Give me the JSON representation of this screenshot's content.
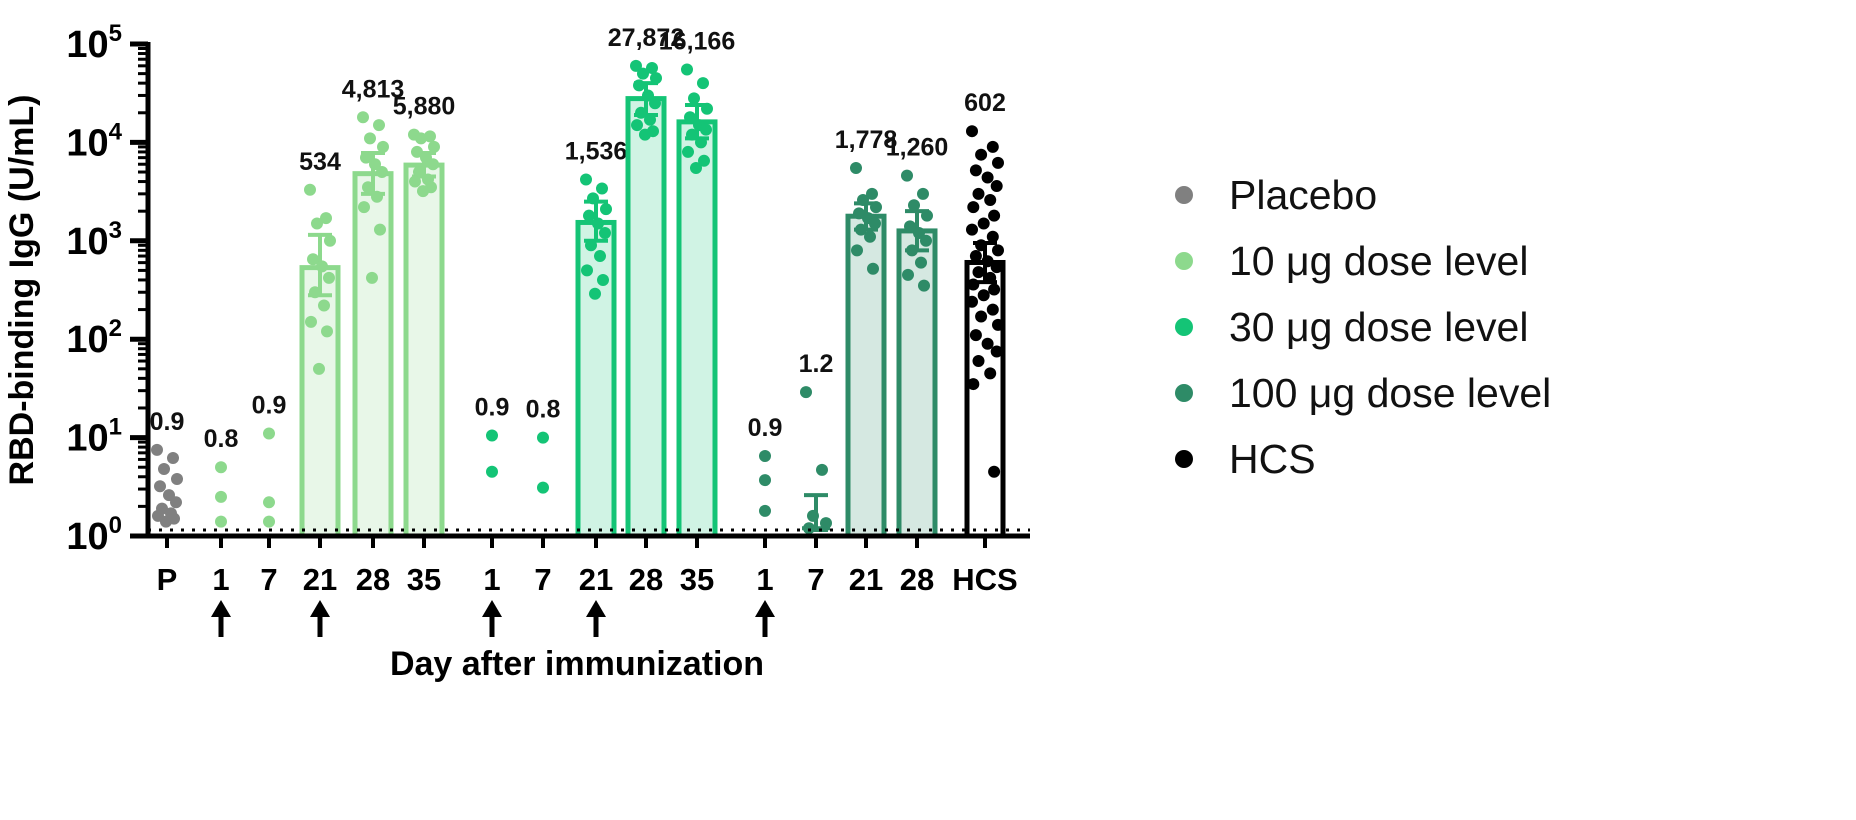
{
  "chart_data": {
    "type": "bar",
    "title": "",
    "xlabel": "Day after immunization",
    "ylabel": "RBD-binding IgG (U/mL)",
    "yscale": "log",
    "ylim": [
      1,
      100000
    ],
    "y_ticks": [
      {
        "value": 1,
        "base": "10",
        "exp": "0"
      },
      {
        "value": 10,
        "base": "10",
        "exp": "1"
      },
      {
        "value": 100,
        "base": "10",
        "exp": "2"
      },
      {
        "value": 1000,
        "base": "10",
        "exp": "3"
      },
      {
        "value": 10000,
        "base": "10",
        "exp": "4"
      },
      {
        "value": 100000,
        "base": "10",
        "exp": "5"
      }
    ],
    "dotted_line_value": 1.15,
    "categories": [
      "P",
      "1",
      "7",
      "21",
      "28",
      "35",
      "1",
      "7",
      "21",
      "28",
      "35",
      "1",
      "7",
      "21",
      "28",
      "HCS"
    ],
    "immunization_arrow_indices": [
      1,
      3,
      6,
      8,
      11
    ],
    "series": [
      {
        "name": "Placebo",
        "color": "#808080"
      },
      {
        "name": "10 μg dose level",
        "color": "#8dd98d"
      },
      {
        "name": "30 μg dose level",
        "color": "#14c476"
      },
      {
        "name": "100 μg dose level",
        "color": "#2e8b67"
      },
      {
        "name": "HCS",
        "color": "#000000"
      }
    ],
    "groups": [
      {
        "category": "P",
        "series": "Placebo",
        "gmt": 0.9,
        "label": "0.9",
        "bar": false,
        "error": null,
        "points": [
          7.5,
          6.2,
          4.8,
          3.8,
          3.2,
          2.6,
          2.2,
          1.9,
          1.7,
          1.6,
          1.5,
          1.4
        ]
      },
      {
        "category": "1",
        "series": "10 μg dose level",
        "gmt": 0.8,
        "label": "0.8",
        "bar": false,
        "error": null,
        "points": [
          5.0,
          2.5,
          1.4
        ]
      },
      {
        "category": "7",
        "series": "10 μg dose level",
        "gmt": 0.9,
        "label": "0.9",
        "bar": false,
        "error": null,
        "points": [
          11,
          2.2,
          1.4
        ]
      },
      {
        "category": "21",
        "series": "10 μg dose level",
        "gmt": 534,
        "label": "534",
        "bar": true,
        "error": [
          280,
          1150
        ],
        "points": [
          3300,
          1700,
          1500,
          1000,
          650,
          550,
          420,
          300,
          220,
          150,
          120,
          50
        ]
      },
      {
        "category": "28",
        "series": "10 μg dose level",
        "gmt": 4813,
        "label": "4,813",
        "bar": true,
        "error": [
          3000,
          7800
        ],
        "points": [
          18000,
          15000,
          11000,
          9000,
          7000,
          6000,
          5000,
          3500,
          2800,
          2200,
          1300,
          420
        ]
      },
      {
        "category": "35",
        "series": "10 μg dose level",
        "gmt": 5880,
        "label": "5,880",
        "bar": true,
        "error": [
          4500,
          7800
        ],
        "points": [
          12000,
          11500,
          11000,
          9000,
          8000,
          7000,
          6000,
          5000,
          4200,
          4000,
          3500,
          3200
        ]
      },
      {
        "category": "1",
        "series": "30 μg dose level",
        "gmt": 0.9,
        "label": "0.9",
        "bar": false,
        "error": null,
        "points": [
          10.5,
          4.5
        ]
      },
      {
        "category": "7",
        "series": "30 μg dose level",
        "gmt": 0.8,
        "label": "0.8",
        "bar": false,
        "error": null,
        "points": [
          10,
          3.1
        ]
      },
      {
        "category": "21",
        "series": "30 μg dose level",
        "gmt": 1536,
        "label": "1,536",
        "bar": true,
        "error": [
          1000,
          2500
        ],
        "points": [
          4200,
          3400,
          2700,
          2100,
          1800,
          1500,
          1200,
          900,
          700,
          500,
          400,
          290
        ]
      },
      {
        "category": "28",
        "series": "30 μg dose level",
        "gmt": 27872,
        "label": "27,872",
        "bar": true,
        "error": [
          19000,
          40000
        ],
        "points": [
          60000,
          57000,
          50000,
          45000,
          38000,
          30000,
          25000,
          20000,
          17000,
          15000,
          13000,
          12000
        ]
      },
      {
        "category": "35",
        "series": "30 μg dose level",
        "gmt": 16166,
        "label": "16,166",
        "bar": true,
        "error": [
          11000,
          24000
        ],
        "points": [
          55000,
          40000,
          28000,
          22000,
          18000,
          15000,
          13500,
          12000,
          10000,
          8000,
          6500,
          5500
        ]
      },
      {
        "category": "1",
        "series": "100 μg dose level",
        "gmt": 0.9,
        "label": "0.9",
        "bar": false,
        "error": null,
        "points": [
          6.5,
          3.7,
          1.8
        ]
      },
      {
        "category": "7",
        "series": "100 μg dose level",
        "gmt": 1.2,
        "label": "1.2",
        "bar": false,
        "error": [
          1.15,
          2.6
        ],
        "points": [
          29,
          4.7,
          1.6,
          1.35,
          1.2
        ]
      },
      {
        "category": "21",
        "series": "100 μg dose level",
        "gmt": 1778,
        "label": "1,778",
        "bar": true,
        "error": [
          1300,
          2400
        ],
        "points": [
          5500,
          3000,
          2600,
          2200,
          1900,
          1700,
          1500,
          1300,
          1100,
          800,
          520
        ]
      },
      {
        "category": "28",
        "series": "100 μg dose level",
        "gmt": 1260,
        "label": "1,260",
        "bar": true,
        "error": [
          800,
          2000
        ],
        "points": [
          4600,
          3000,
          2300,
          1800,
          1400,
          1200,
          1000,
          800,
          600,
          450,
          350
        ]
      },
      {
        "category": "HCS",
        "series": "HCS",
        "gmt": 602,
        "label": "602",
        "bar": true,
        "error": [
          380,
          950
        ],
        "points": [
          13000,
          9000,
          7500,
          6200,
          5200,
          4400,
          3600,
          3000,
          2600,
          2200,
          1800,
          1500,
          1300,
          1100,
          900,
          800,
          700,
          620,
          540,
          480,
          420,
          360,
          320,
          280,
          240,
          200,
          170,
          140,
          110,
          90,
          75,
          60,
          45,
          35,
          4.5
        ]
      }
    ]
  }
}
